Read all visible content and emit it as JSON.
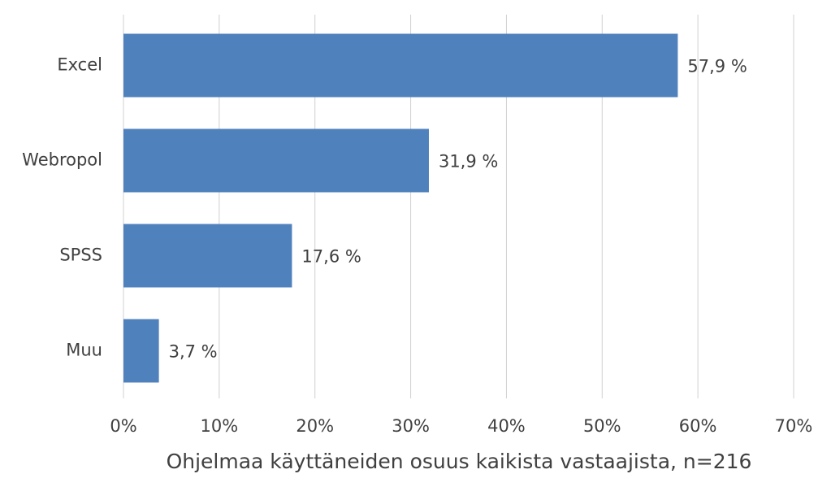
{
  "chart_data": {
    "type": "bar",
    "x_label": "Ohjelmaa käyttäneiden osuus kaikista vastaajista, n=216",
    "categories": [
      "Excel",
      "Webropol",
      "SPSS",
      "Muu"
    ],
    "values": [
      57.9,
      31.9,
      17.6,
      3.7
    ],
    "value_labels": [
      "57,9 %",
      "31,9 %",
      "17,6 %",
      "3,7 %"
    ],
    "color": "#4f81bd",
    "xlim": [
      0,
      70
    ],
    "xticks": [
      {
        "value": 0,
        "label": "0%"
      },
      {
        "value": 10,
        "label": "10%"
      },
      {
        "value": 20,
        "label": "20%"
      },
      {
        "value": 30,
        "label": "30%"
      },
      {
        "value": 40,
        "label": "40%"
      },
      {
        "value": 50,
        "label": "50%"
      },
      {
        "value": 60,
        "label": "60%"
      },
      {
        "value": 70,
        "label": "70%"
      }
    ],
    "grid": true
  }
}
